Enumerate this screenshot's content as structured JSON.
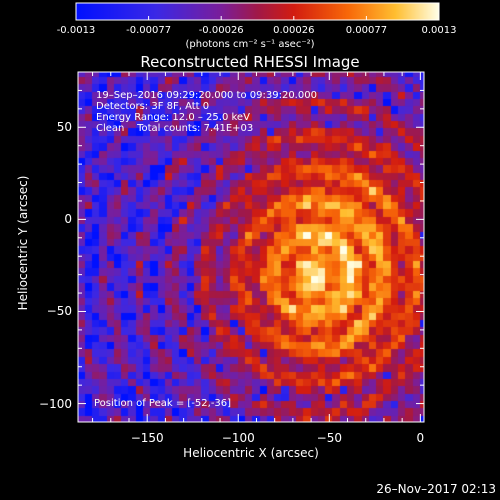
{
  "colorbar": {
    "ticks": [
      "-0.0013",
      "-0.00077",
      "-0.00026",
      "0.00026",
      "0.00077",
      "0.0013"
    ],
    "ticks_offsets": [
      0,
      0.2,
      0.4,
      0.6,
      0.8,
      1.0
    ],
    "unit_label": "(photons cm⁻² s⁻¹ asec⁻²)",
    "range": [
      -0.0013,
      0.0013
    ]
  },
  "chart_data": {
    "type": "heatmap",
    "title": "Reconstructed RHESSI Image",
    "xlabel": "Heliocentric X (arcsec)",
    "ylabel": "Heliocentric Y (arcsec)",
    "xlim": [
      -188,
      2
    ],
    "ylim": [
      -110,
      80
    ],
    "xticks": [
      -150,
      -100,
      -50,
      0
    ],
    "xtick_labels": [
      "−150",
      "−100",
      "−50",
      "0"
    ],
    "yticks": [
      -100,
      -50,
      0,
      50
    ],
    "ytick_labels": [
      "−100",
      "−50",
      "0",
      "50"
    ],
    "pixel_size_arcsec": 4,
    "peak_position": [
      -52,
      -36
    ],
    "annotations": [
      "19–Sep–2016 09:29:20.000 to 09:39:20.000",
      "Detectors: 3F 8F, Att 0",
      "Energy Range: 12.0 – 25.0 keV",
      "Clean    Total counts: 7.41E+03"
    ],
    "peak_label": "Position of Peak = [-52,-36]"
  },
  "footer": {
    "timestamp": "26–Nov–2017 02:13"
  }
}
